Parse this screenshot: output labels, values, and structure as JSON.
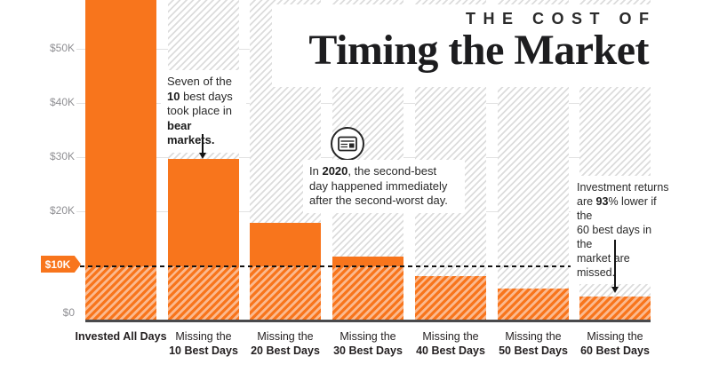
{
  "title": {
    "kicker": "THE COST OF",
    "main": "Timing the Market"
  },
  "colors": {
    "orange": "#F8751C",
    "orange_hatch_tint": "#FBB98E",
    "background_hatch_gray": "#DCDCDC",
    "gridline_gray": "#E2E2E2",
    "axis_baseline_dark": "#4A4A4C",
    "label_dark": "#231F20",
    "ytick_gray": "#8F8F93",
    "ink_black": "#141414"
  },
  "y_axis": {
    "ticks": [
      {
        "label": "$50K",
        "value": 50000
      },
      {
        "label": "$40K",
        "value": 40000
      },
      {
        "label": "$30K",
        "value": 30000
      },
      {
        "label": "$20K",
        "value": 20000
      },
      {
        "label": "$0",
        "value": 0
      }
    ],
    "badge": "$10K"
  },
  "bars": [
    {
      "line1": "Invested All Days",
      "line1_bold": true,
      "line2": "",
      "value": 65000
    },
    {
      "line1": "Missing the",
      "line1_bold": false,
      "line2": "10 Best Days",
      "value": 29700
    },
    {
      "line1": "Missing the",
      "line1_bold": false,
      "line2": "20 Best Days",
      "value": 17800
    },
    {
      "line1": "Missing the",
      "line1_bold": false,
      "line2": "30 Best Days",
      "value": 11700
    },
    {
      "line1": "Missing the",
      "line1_bold": false,
      "line2": "40 Best Days",
      "value": 8000
    },
    {
      "line1": "Missing the",
      "line1_bold": false,
      "line2": "50 Best Days",
      "value": 5700
    },
    {
      "line1": "Missing the",
      "line1_bold": false,
      "line2": "60 Best Days",
      "value": 4200
    }
  ],
  "annotations": {
    "bear": {
      "lines": [
        [
          [
            "Seven of the",
            0
          ]
        ],
        [
          [
            "10",
            1
          ],
          [
            " best days",
            0
          ]
        ],
        [
          [
            "took place in",
            0
          ]
        ],
        [
          [
            "bear markets.",
            1
          ]
        ]
      ]
    },
    "y2020": {
      "lines": [
        [
          [
            "In ",
            0
          ],
          [
            "2020",
            1
          ],
          [
            ", the second-best",
            0
          ]
        ],
        [
          [
            "day happened immediately",
            0
          ]
        ],
        [
          [
            "after the second-worst day.",
            0
          ]
        ]
      ]
    },
    "returns": {
      "lines": [
        [
          [
            "Investment returns",
            0
          ]
        ],
        [
          [
            "are ",
            0
          ],
          [
            "93",
            1
          ],
          [
            "% lower if the",
            0
          ]
        ],
        [
          [
            "60 best days in the",
            0
          ]
        ],
        [
          [
            "market are missed.",
            0
          ]
        ]
      ]
    }
  },
  "icons": {
    "circle_icon": "newspaper-icon"
  },
  "chart_data": {
    "type": "bar",
    "title": "The Cost of Timing the Market",
    "categories": [
      "Invested All Days",
      "Missing the 10 Best Days",
      "Missing the 20 Best Days",
      "Missing the 30 Best Days",
      "Missing the 40 Best Days",
      "Missing the 50 Best Days",
      "Missing the 60 Best Days"
    ],
    "values": [
      65000,
      29700,
      17800,
      11700,
      8000,
      5700,
      4200
    ],
    "xlabel": "",
    "ylabel": "",
    "ylim": [
      0,
      59000
    ],
    "ytick_labels": [
      "$0",
      "$10K",
      "$20K",
      "$30K",
      "$40K",
      "$50K"
    ],
    "grid": true,
    "reference_line": {
      "value": 10000,
      "label": "$10K",
      "style": "dashed-black"
    },
    "notes": [
      "First bar is clipped at the top of the visible chart area.",
      "Bar segments below the $10K reference line are drawn with a hatched pattern.",
      "Background columns are gray-hatched full-height guides."
    ]
  }
}
